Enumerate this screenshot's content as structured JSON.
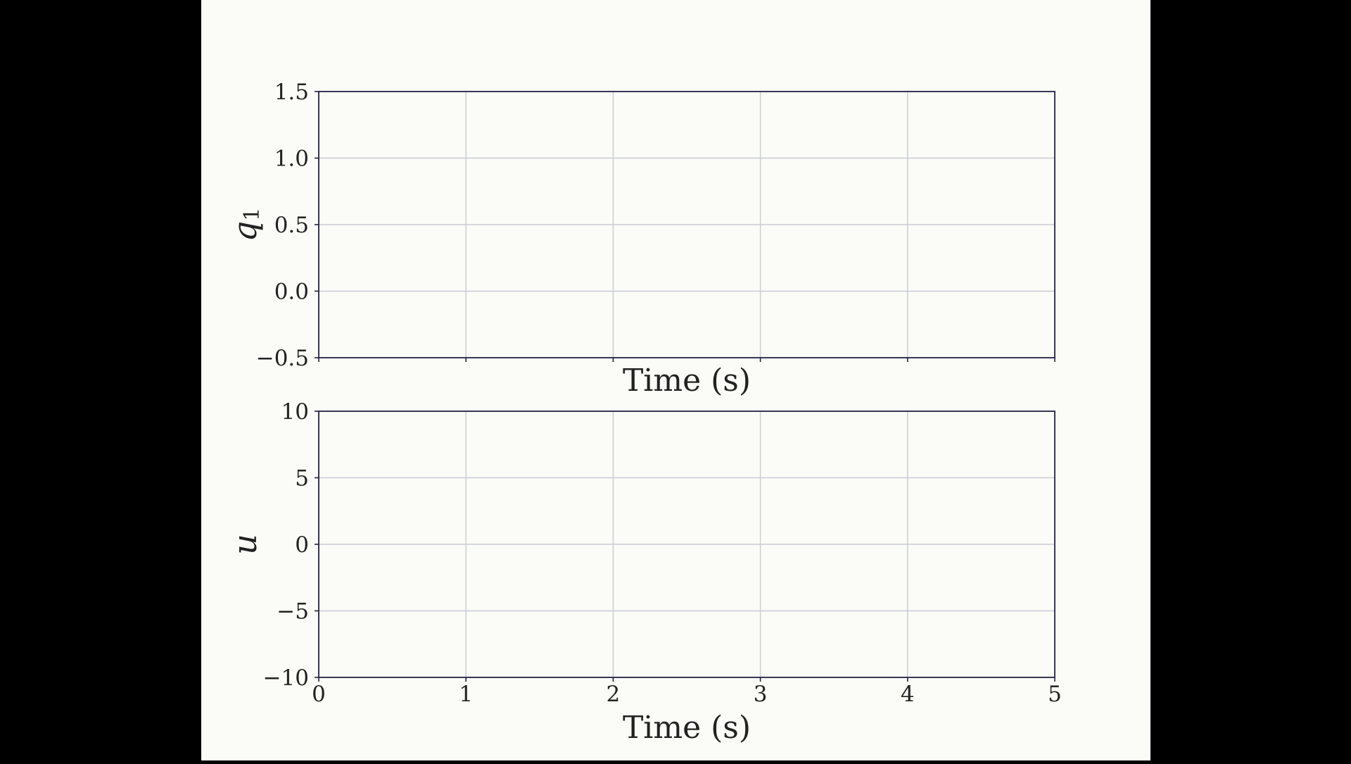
{
  "colors": {
    "background": "#fbfbf7",
    "surround": "#000000",
    "axes_frame": "#222244",
    "grid": "#c9cbd6",
    "text": "#222222"
  },
  "chart_data": [
    {
      "type": "line",
      "title": "",
      "xlabel": "Time (s)",
      "ylabel": "q1",
      "ylabel_base": "q",
      "ylabel_sub": "1",
      "xlim": [
        0,
        5
      ],
      "ylim": [
        -0.5,
        1.5
      ],
      "xticks": [
        0,
        1,
        2,
        3,
        4,
        5
      ],
      "xtick_labels": [],
      "yticks": [
        -0.5,
        0.0,
        0.5,
        1.0,
        1.5
      ],
      "ytick_labels": [
        "−0.5",
        "0.0",
        "0.5",
        "1.0",
        "1.5"
      ],
      "grid": true,
      "series": []
    },
    {
      "type": "line",
      "title": "",
      "xlabel": "Time (s)",
      "ylabel": "u",
      "xlim": [
        0,
        5
      ],
      "ylim": [
        -10,
        10
      ],
      "xticks": [
        0,
        1,
        2,
        3,
        4,
        5
      ],
      "xtick_labels": [
        "0",
        "1",
        "2",
        "3",
        "4",
        "5"
      ],
      "yticks": [
        -10,
        -5,
        0,
        5,
        10
      ],
      "ytick_labels": [
        "−10",
        "−5",
        "0",
        "5",
        "10"
      ],
      "grid": true,
      "series": []
    }
  ]
}
